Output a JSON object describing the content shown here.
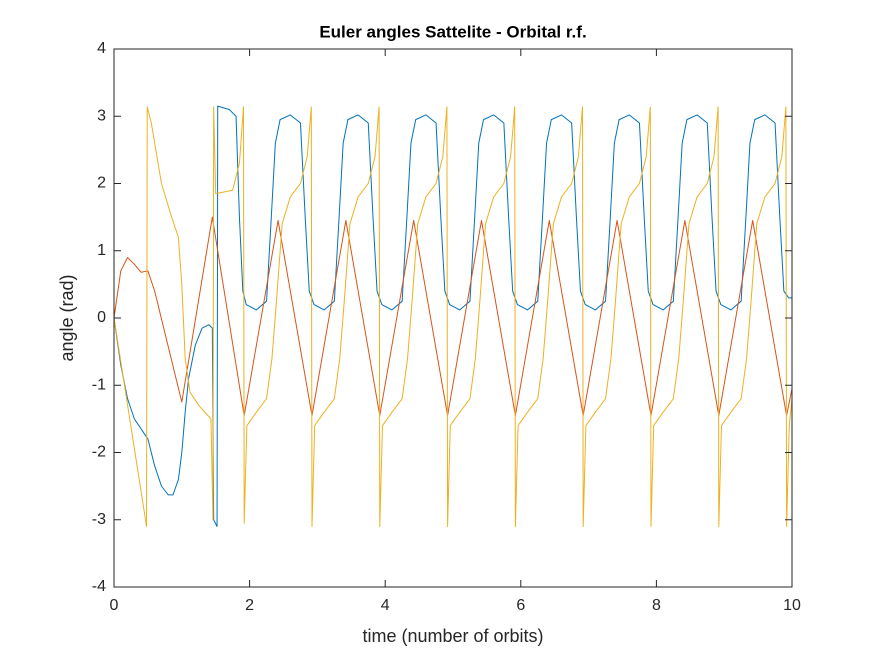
{
  "chart_data": {
    "type": "line",
    "title": "Euler angles Sattelite - Orbital r.f.",
    "x_label": "time (number of orbits)",
    "y_label": "angle (rad)",
    "xlim": [
      0,
      10
    ],
    "xticks": [
      0,
      2,
      4,
      6,
      8,
      10
    ],
    "ylim": [
      -4,
      4
    ],
    "yticks": [
      -4,
      -3,
      -2,
      -1,
      0,
      1,
      2,
      3,
      4
    ],
    "grid": false,
    "series": [
      {
        "color": "#0072BD",
        "x": [
          0,
          0.1,
          0.2,
          0.3,
          0.4,
          0.5,
          0.6,
          0.7,
          0.8,
          0.87,
          0.95,
          1.0,
          1.05,
          1.1,
          1.2,
          1.3,
          1.4,
          1.45,
          1.47,
          1.52,
          1.53,
          1.7,
          1.8,
          1.85,
          1.9,
          1.95,
          2.1,
          2.25,
          2.32,
          2.38,
          2.45,
          2.6,
          2.75,
          2.82,
          2.88,
          2.95,
          3.1,
          3.25,
          3.32,
          3.38,
          3.45,
          3.6,
          3.75,
          3.82,
          3.88,
          3.95,
          4.1,
          4.25,
          4.32,
          4.38,
          4.45,
          4.6,
          4.75,
          4.82,
          4.88,
          4.95,
          5.1,
          5.25,
          5.32,
          5.38,
          5.45,
          5.6,
          5.75,
          5.82,
          5.88,
          5.95,
          6.1,
          6.25,
          6.32,
          6.38,
          6.45,
          6.6,
          6.75,
          6.82,
          6.88,
          6.95,
          7.1,
          7.25,
          7.32,
          7.38,
          7.45,
          7.6,
          7.75,
          7.82,
          7.88,
          7.95,
          8.1,
          8.25,
          8.32,
          8.38,
          8.45,
          8.6,
          8.75,
          8.82,
          8.88,
          8.95,
          9.1,
          9.25,
          9.32,
          9.38,
          9.45,
          9.6,
          9.75,
          9.82,
          9.88,
          9.95,
          10
        ],
        "values": [
          0,
          -0.7,
          -1.2,
          -1.5,
          -1.65,
          -1.8,
          -2.2,
          -2.5,
          -2.63,
          -2.63,
          -2.4,
          -2.0,
          -1.4,
          -0.9,
          -0.4,
          -0.15,
          -0.1,
          -0.15,
          -3.0,
          -3.1,
          3.15,
          3.1,
          3.0,
          1.5,
          0.4,
          0.2,
          0.12,
          0.25,
          1.5,
          2.6,
          2.95,
          3.02,
          2.9,
          1.5,
          0.4,
          0.2,
          0.12,
          0.25,
          1.5,
          2.6,
          2.95,
          3.02,
          2.9,
          1.5,
          0.4,
          0.2,
          0.12,
          0.25,
          1.5,
          2.6,
          2.95,
          3.02,
          2.9,
          1.5,
          0.4,
          0.2,
          0.12,
          0.25,
          1.5,
          2.6,
          2.95,
          3.02,
          2.9,
          1.5,
          0.4,
          0.2,
          0.12,
          0.25,
          1.5,
          2.6,
          2.95,
          3.02,
          2.9,
          1.5,
          0.4,
          0.2,
          0.12,
          0.25,
          1.5,
          2.6,
          2.95,
          3.02,
          2.9,
          1.5,
          0.4,
          0.2,
          0.12,
          0.25,
          1.5,
          2.6,
          2.95,
          3.02,
          2.9,
          1.5,
          0.4,
          0.2,
          0.12,
          0.25,
          1.5,
          2.6,
          2.95,
          3.02,
          2.9,
          1.5,
          0.4,
          0.3,
          0.3
        ]
      },
      {
        "color": "#D95319",
        "x": [
          0,
          0.1,
          0.2,
          0.3,
          0.4,
          0.5,
          0.6,
          1.0,
          1.45,
          1.92,
          2.42,
          2.92,
          3.42,
          3.92,
          4.42,
          4.92,
          5.42,
          5.92,
          6.42,
          6.92,
          7.42,
          7.92,
          8.42,
          8.92,
          9.42,
          9.92,
          10
        ],
        "values": [
          0,
          0.7,
          0.9,
          0.8,
          0.68,
          0.7,
          0.4,
          -1.25,
          1.5,
          -1.45,
          1.45,
          -1.45,
          1.45,
          -1.45,
          1.45,
          -1.45,
          1.45,
          -1.45,
          1.45,
          -1.45,
          1.45,
          -1.45,
          1.45,
          -1.45,
          1.45,
          -1.45,
          -1.05
        ]
      },
      {
        "color": "#EDB120",
        "x": [
          0,
          0.48,
          0.49,
          0.55,
          0.7,
          0.85,
          0.95,
          1.0,
          1.05,
          1.12,
          1.25,
          1.43,
          1.46,
          1.47,
          1.5,
          1.75,
          1.85,
          1.91,
          1.92,
          1.96,
          2.1,
          2.25,
          2.33,
          2.4,
          2.48,
          2.6,
          2.75,
          2.85,
          2.91,
          2.92,
          2.96,
          3.1,
          3.25,
          3.33,
          3.4,
          3.48,
          3.6,
          3.75,
          3.85,
          3.91,
          3.92,
          3.96,
          4.1,
          4.25,
          4.33,
          4.4,
          4.48,
          4.6,
          4.75,
          4.85,
          4.91,
          4.92,
          4.96,
          5.1,
          5.25,
          5.33,
          5.4,
          5.48,
          5.6,
          5.75,
          5.85,
          5.91,
          5.92,
          5.96,
          6.1,
          6.25,
          6.33,
          6.4,
          6.48,
          6.6,
          6.75,
          6.85,
          6.91,
          6.92,
          6.96,
          7.1,
          7.25,
          7.33,
          7.4,
          7.48,
          7.6,
          7.75,
          7.85,
          7.91,
          7.92,
          7.96,
          8.1,
          8.25,
          8.33,
          8.4,
          8.48,
          8.6,
          8.75,
          8.85,
          8.91,
          8.92,
          8.96,
          9.1,
          9.25,
          9.33,
          9.4,
          9.48,
          9.6,
          9.75,
          9.85,
          9.91,
          9.92,
          9.96,
          10
        ],
        "values": [
          0,
          -3.1,
          3.14,
          2.9,
          2.0,
          1.5,
          1.2,
          0.5,
          -0.6,
          -1.1,
          -1.3,
          -1.5,
          -3.0,
          3.14,
          1.85,
          1.9,
          2.3,
          3.14,
          -3.05,
          -1.6,
          -1.4,
          -1.2,
          -0.6,
          0.3,
          1.4,
          1.8,
          2.0,
          2.4,
          3.14,
          -3.1,
          -1.6,
          -1.4,
          -1.2,
          -0.6,
          0.3,
          1.4,
          1.8,
          2.0,
          2.4,
          3.14,
          -3.1,
          -1.6,
          -1.4,
          -1.2,
          -0.6,
          0.3,
          1.4,
          1.8,
          2.0,
          2.4,
          3.14,
          -3.1,
          -1.6,
          -1.4,
          -1.2,
          -0.6,
          0.3,
          1.4,
          1.8,
          2.0,
          2.4,
          3.14,
          -3.1,
          -1.6,
          -1.4,
          -1.2,
          -0.6,
          0.3,
          1.4,
          1.8,
          2.0,
          2.4,
          3.14,
          -3.1,
          -1.6,
          -1.4,
          -1.2,
          -0.6,
          0.3,
          1.4,
          1.8,
          2.0,
          2.4,
          3.14,
          -3.1,
          -1.6,
          -1.4,
          -1.2,
          -0.6,
          0.3,
          1.4,
          1.8,
          2.0,
          2.4,
          3.14,
          -3.1,
          -1.6,
          -1.4,
          -1.2,
          -0.6,
          0.3,
          1.4,
          1.8,
          2.0,
          2.4,
          3.14,
          -3.1,
          -1.6,
          -1.2
        ]
      }
    ]
  }
}
